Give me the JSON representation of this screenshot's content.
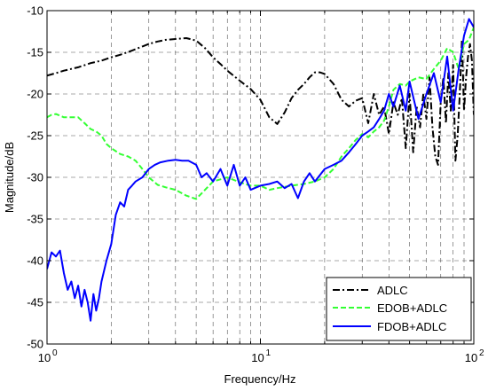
{
  "chart_data": {
    "type": "line",
    "title": "",
    "xlabel": "Frequency/Hz",
    "ylabel": "Magnitude/dB",
    "xscale": "log",
    "xlim": [
      1,
      100
    ],
    "ylim": [
      -50,
      -10
    ],
    "xticks": [
      1,
      10,
      100
    ],
    "xtick_labels": [
      "10",
      "10",
      "10"
    ],
    "xtick_exponents": [
      "0",
      "1",
      "2"
    ],
    "yticks": [
      -50,
      -45,
      -40,
      -35,
      -30,
      -25,
      -20,
      -15,
      -10
    ],
    "ytick_labels": [
      "-50",
      "-45",
      "-40",
      "-35",
      "-30",
      "-25",
      "-20",
      "-15",
      "-10"
    ],
    "grid": true,
    "legend_position": "bottom-right",
    "series": [
      {
        "name": "ADLC",
        "color": "#000000",
        "style": "dashdot",
        "x": [
          1,
          1.1,
          1.2,
          1.4,
          1.6,
          1.8,
          2,
          2.2,
          2.5,
          2.8,
          3,
          3.3,
          3.6,
          4,
          4.5,
          5,
          5.5,
          6,
          6.5,
          7,
          8,
          9,
          10,
          11,
          12,
          13,
          14,
          15,
          16,
          17,
          18,
          19,
          20,
          22,
          24,
          26,
          28,
          30,
          32,
          34,
          36,
          38,
          40,
          42,
          44,
          46,
          48,
          50,
          52,
          54,
          56,
          58,
          60,
          62,
          64,
          66,
          68,
          70,
          72,
          74,
          76,
          78,
          80,
          82,
          84,
          86,
          88,
          90,
          92,
          94,
          96,
          98,
          100
        ],
        "values": [
          -17.8,
          -17.5,
          -17.2,
          -16.8,
          -16.3,
          -16,
          -15.6,
          -15.3,
          -14.8,
          -14.3,
          -14,
          -13.7,
          -13.5,
          -13.4,
          -13.3,
          -13.6,
          -14.5,
          -15.6,
          -16.4,
          -17.2,
          -18.4,
          -19.4,
          -20.7,
          -22.8,
          -23.6,
          -22.2,
          -20.5,
          -19.5,
          -18.8,
          -18,
          -17.4,
          -17.4,
          -17.6,
          -18.8,
          -20.7,
          -21.5,
          -20.8,
          -20.5,
          -23.5,
          -20,
          -22.5,
          -21.5,
          -24.8,
          -21,
          -22.5,
          -20.5,
          -26.5,
          -20,
          -27,
          -21.5,
          -24,
          -20,
          -23,
          -18,
          -24,
          -27.5,
          -28.5,
          -21,
          -18,
          -23.5,
          -17.5,
          -22,
          -16.5,
          -28,
          -25,
          -20,
          -13.5,
          -22,
          -18,
          -15.5,
          -14,
          -16,
          -22.5
        ]
      },
      {
        "name": "EDOB+ADLC",
        "color": "#33ff33",
        "style": "dashed",
        "x": [
          1,
          1.05,
          1.1,
          1.2,
          1.3,
          1.4,
          1.5,
          1.6,
          1.7,
          1.8,
          1.9,
          2,
          2.2,
          2.4,
          2.6,
          2.8,
          3,
          3.3,
          3.6,
          4,
          4.5,
          5,
          5.5,
          6,
          7,
          8,
          9,
          10,
          11,
          12,
          14,
          16,
          18,
          20,
          22,
          24,
          26,
          28,
          30,
          32,
          34,
          36,
          38,
          40,
          42,
          45,
          48,
          50,
          55,
          60,
          65,
          70,
          75,
          80,
          85,
          90,
          95,
          100
        ],
        "values": [
          -22.8,
          -22.5,
          -22.4,
          -22.8,
          -22.8,
          -22.8,
          -23.5,
          -24.2,
          -24.5,
          -25,
          -26,
          -26.5,
          -27.2,
          -27.5,
          -28,
          -29,
          -30,
          -30.9,
          -31.2,
          -31.5,
          -32.2,
          -32.6,
          -31.5,
          -30.5,
          -30,
          -30.6,
          -31,
          -31,
          -31.5,
          -31.3,
          -31,
          -30.8,
          -30.5,
          -30,
          -29,
          -27.5,
          -26.5,
          -25.5,
          -24.8,
          -25.2,
          -24.5,
          -24,
          -23.2,
          -21.5,
          -19.5,
          -18.8,
          -19,
          -18.5,
          -18,
          -18.2,
          -17,
          -16,
          -14.5,
          -15,
          -17,
          -14,
          -13.5,
          -12
        ]
      },
      {
        "name": "FDOB+ADLC",
        "color": "#0000ff",
        "style": "solid",
        "x": [
          1,
          1.05,
          1.1,
          1.15,
          1.2,
          1.25,
          1.3,
          1.35,
          1.4,
          1.45,
          1.5,
          1.55,
          1.6,
          1.65,
          1.7,
          1.75,
          1.8,
          1.9,
          2,
          2.1,
          2.2,
          2.3,
          2.4,
          2.5,
          2.6,
          2.8,
          3,
          3.2,
          3.4,
          3.7,
          4,
          4.3,
          4.6,
          5,
          5.3,
          5.6,
          6,
          6.5,
          7,
          7.5,
          8,
          8.5,
          9,
          10,
          11,
          12,
          13,
          14,
          15,
          16,
          17,
          18,
          20,
          22,
          24,
          26,
          28,
          30,
          32,
          34,
          36,
          38,
          40,
          42,
          45,
          48,
          50,
          55,
          60,
          65,
          70,
          75,
          80,
          85,
          90,
          95,
          100
        ],
        "values": [
          -41,
          -39,
          -39.5,
          -38.8,
          -41.5,
          -43.5,
          -42.5,
          -44.5,
          -43,
          -45.5,
          -43.5,
          -45,
          -47.2,
          -44,
          -46,
          -44.5,
          -42.5,
          -40,
          -38,
          -34.5,
          -33,
          -33.5,
          -31.5,
          -31,
          -30.5,
          -30,
          -29,
          -28.5,
          -28.2,
          -28,
          -27.9,
          -28,
          -28,
          -28.5,
          -30,
          -29.5,
          -30.5,
          -29,
          -31,
          -28.5,
          -31,
          -30,
          -31.5,
          -31,
          -30.8,
          -30.5,
          -31.3,
          -30.8,
          -32.5,
          -30.5,
          -29.5,
          -30.5,
          -29,
          -28.5,
          -28,
          -27,
          -26,
          -25,
          -24.5,
          -24,
          -23,
          -22,
          -20,
          -21.5,
          -19,
          -22,
          -18.5,
          -23,
          -20,
          -17.5,
          -21,
          -15.5,
          -22,
          -17,
          -13,
          -11,
          -12
        ]
      }
    ]
  }
}
